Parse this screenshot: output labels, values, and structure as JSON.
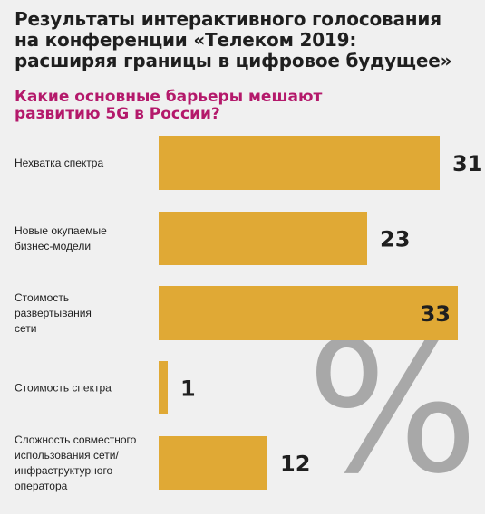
{
  "chart_data": {
    "type": "bar",
    "orientation": "horizontal",
    "title": "Результаты интерактивного голосования\nна конференции «Телеком 2019:\nрасширяя границы в цифровое будущее»",
    "subtitle": "Какие основные барьеры мешают\nразвитию 5G в России?",
    "unit_symbol": "%",
    "categories": [
      [
        "Нехватка спектра"
      ],
      [
        "Новые окупаемые",
        "бизнес-модели"
      ],
      [
        "Стоимость",
        "развертывания",
        "сети"
      ],
      [
        "Стоимость спектра"
      ],
      [
        "Сложность совместного",
        "использования сети/",
        "инфраструктурного",
        "оператора"
      ]
    ],
    "values": [
      31,
      23,
      33,
      1,
      12
    ],
    "xlim": [
      0,
      33
    ],
    "bar_color": "#e0a935",
    "grid": false,
    "legend": "none"
  }
}
